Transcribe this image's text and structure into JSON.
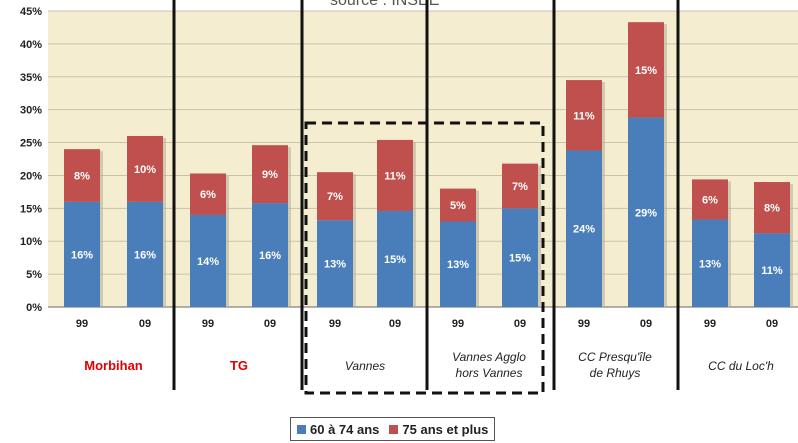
{
  "source_title": "source : INSEE",
  "chart_data": {
    "type": "bar",
    "stacked": true,
    "ylim": [
      0,
      45
    ],
    "y_ticks": [
      "0%",
      "5%",
      "10%",
      "15%",
      "20%",
      "25%",
      "30%",
      "35%",
      "40%",
      "45%"
    ],
    "grid": true,
    "legend_position": "bottom",
    "colors": {
      "60 à 74 ans": "#4a7ebb",
      "75 ans et plus": "#c0504d",
      "plot_bg": "#f4edd0"
    },
    "groups": [
      {
        "label": "Morbihan",
        "label_color": "#e00000",
        "label_style": "bold",
        "bars": [
          {
            "x": "99",
            "s1": 16,
            "s2": 8,
            "s1_label": "16%",
            "s2_label": "8%"
          },
          {
            "x": "09",
            "s1": 16,
            "s2": 10,
            "s1_label": "16%",
            "s2_label": "10%"
          }
        ]
      },
      {
        "label": "TG",
        "label_color": "#e00000",
        "label_style": "bold",
        "bars": [
          {
            "x": "99",
            "s1": 14,
            "s2": 6.3,
            "s1_label": "14%",
            "s2_label": "6%"
          },
          {
            "x": "09",
            "s1": 15.8,
            "s2": 8.8,
            "s1_label": "16%",
            "s2_label": "9%"
          }
        ]
      },
      {
        "label": "Vannes",
        "label_color": "#222222",
        "label_style": "italic",
        "bars": [
          {
            "x": "99",
            "s1": 13.2,
            "s2": 7.3,
            "s1_label": "13%",
            "s2_label": "7%"
          },
          {
            "x": "09",
            "s1": 14.6,
            "s2": 10.8,
            "s1_label": "15%",
            "s2_label": "11%"
          }
        ]
      },
      {
        "label": "Vannes Agglo\nhors Vannes",
        "label_color": "#222222",
        "label_style": "italic",
        "bars": [
          {
            "x": "99",
            "s1": 13,
            "s2": 5,
            "s1_label": "13%",
            "s2_label": "5%"
          },
          {
            "x": "09",
            "s1": 15,
            "s2": 6.8,
            "s1_label": "15%",
            "s2_label": "7%"
          }
        ]
      },
      {
        "label": "CC Presqu'île\nde Rhuys",
        "label_color": "#222222",
        "label_style": "italic",
        "bars": [
          {
            "x": "99",
            "s1": 23.8,
            "s2": 10.7,
            "s1_label": "24%",
            "s2_label": "11%"
          },
          {
            "x": "09",
            "s1": 28.8,
            "s2": 14.5,
            "s1_label": "29%",
            "s2_label": "15%"
          }
        ]
      },
      {
        "label": "CC du Loc'h",
        "label_color": "#222222",
        "label_style": "italic",
        "bars": [
          {
            "x": "99",
            "s1": 13.3,
            "s2": 6.1,
            "s1_label": "13%",
            "s2_label": "6%"
          },
          {
            "x": "09",
            "s1": 11.2,
            "s2": 7.8,
            "s1_label": "11%",
            "s2_label": "8%"
          }
        ]
      }
    ],
    "highlight_groups": [
      "Vannes",
      "Vannes Agglo\nhors Vannes"
    ],
    "legend": [
      {
        "name": "60 à 74 ans",
        "color": "#4a7ebb"
      },
      {
        "name": "75 ans et plus",
        "color": "#c0504d"
      }
    ]
  }
}
